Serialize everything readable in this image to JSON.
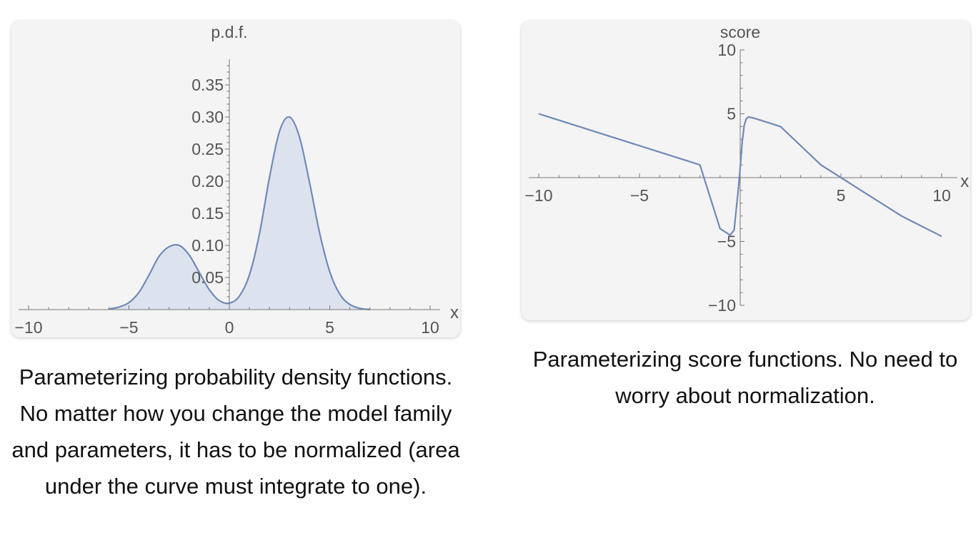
{
  "chart_data": [
    {
      "type": "area",
      "title": "",
      "xlabel": "x",
      "ylabel": "p.d.f.",
      "xlim": [
        -10.5,
        10.5
      ],
      "ylim": [
        0,
        0.39
      ],
      "x_ticks": [
        -10,
        -5,
        0,
        5,
        10
      ],
      "x_tick_labels": [
        "−10",
        "−5",
        "0",
        "5",
        "10"
      ],
      "y_ticks": [
        0.05,
        0.1,
        0.15,
        0.2,
        0.25,
        0.3,
        0.35
      ],
      "y_tick_labels": [
        "0.05",
        "0.10",
        "0.15",
        "0.20",
        "0.25",
        "0.30",
        "0.35"
      ],
      "grid": false,
      "color": "#6f8ab8",
      "fill_color": "#dde3ee",
      "series": [
        {
          "x": [
            -6,
            -5.5,
            -5,
            -4.5,
            -4,
            -3.5,
            -3,
            -2.5,
            -2,
            -1.5,
            -1,
            -0.5,
            0,
            0.5,
            1,
            1.5,
            2,
            2.5,
            3,
            3.5,
            4,
            4.5,
            5,
            5.5,
            6,
            6.5,
            7
          ],
          "y": [
            0.001,
            0.004,
            0.011,
            0.027,
            0.054,
            0.083,
            0.098,
            0.1,
            0.085,
            0.058,
            0.031,
            0.014,
            0.01,
            0.021,
            0.054,
            0.118,
            0.206,
            0.278,
            0.3,
            0.268,
            0.197,
            0.119,
            0.059,
            0.024,
            0.008,
            0.002,
            0.0
          ]
        }
      ]
    },
    {
      "type": "line",
      "title": "",
      "xlabel": "x",
      "ylabel": "score",
      "xlim": [
        -10.5,
        10.5
      ],
      "ylim": [
        -10.5,
        10.5
      ],
      "x_ticks": [
        -10,
        -5,
        5,
        10
      ],
      "x_tick_labels": [
        "−10",
        "−5",
        "5",
        "10"
      ],
      "y_ticks": [
        -10,
        -5,
        5,
        10
      ],
      "y_tick_labels": [
        "−10",
        "−5",
        "5",
        "10"
      ],
      "grid": false,
      "color": "#6f8ab8",
      "series": [
        {
          "x": [
            -10,
            -8,
            -6,
            -4,
            -2,
            -1,
            -0.5,
            -0.3,
            -0.2,
            -0.1,
            0,
            0.1,
            0.2,
            0.3,
            0.4,
            0.6,
            1,
            2,
            4,
            6,
            8,
            10
          ],
          "y": [
            5,
            4,
            3,
            2,
            1,
            -4,
            -4.5,
            -4.1,
            -2.5,
            -1.0,
            0.8,
            2.8,
            4.1,
            4.6,
            4.75,
            4.7,
            4.5,
            4,
            1,
            -1,
            -3,
            -4.6
          ]
        }
      ]
    }
  ],
  "captions": {
    "pdf": "Parameterizing probability density functions. No matter how you change the model family and parameters, it has to be normalized (area under the curve must integrate to one).",
    "score": "Parameterizing score functions. No need to worry about normalization."
  }
}
